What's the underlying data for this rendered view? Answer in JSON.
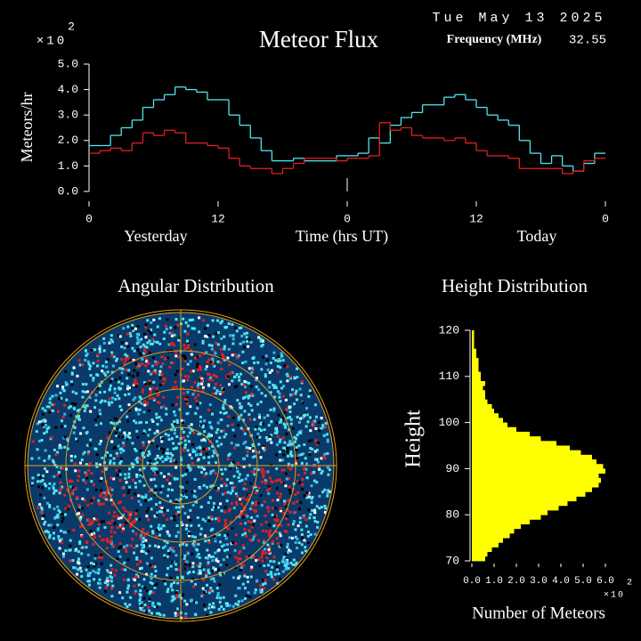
{
  "header": {
    "date": "Tue May 13 2025",
    "frequency_label": "Frequency (MHz)",
    "frequency": 32.55
  },
  "chart_data": [
    {
      "type": "line",
      "title": "Meteor Flux",
      "y_label": "Meteors/hr",
      "x_label": "Time (hrs UT)",
      "multiplier": {
        "base": "×10",
        "exponent": 2
      },
      "day_labels": [
        "Yesterday",
        "Today"
      ],
      "xlim": [
        0,
        48
      ],
      "xticks": [
        0,
        12,
        {
          "value": 24,
          "label": "0"
        },
        {
          "value": 36,
          "label": "12"
        },
        {
          "value": 48,
          "label": "0"
        }
      ],
      "ylim": [
        0,
        5
      ],
      "yticks": [
        {
          "value": 0,
          "label": "0.0"
        },
        {
          "value": 1,
          "label": "1.0"
        },
        {
          "value": 2,
          "label": "2.0"
        },
        {
          "value": 3,
          "label": "3.0"
        },
        {
          "value": 4,
          "label": "4.0"
        },
        {
          "value": 5,
          "label": "5.0"
        }
      ],
      "x": [
        0,
        1,
        2,
        3,
        4,
        5,
        6,
        7,
        8,
        9,
        10,
        11,
        12,
        13,
        14,
        15,
        16,
        17,
        18,
        19,
        20,
        21,
        22,
        23,
        24,
        25,
        26,
        27,
        28,
        29,
        30,
        31,
        32,
        33,
        34,
        35,
        36,
        37,
        38,
        39,
        40,
        41,
        42,
        43,
        44,
        45,
        46,
        47
      ],
      "series": [
        {
          "color": "#4fe6f0",
          "values": [
            1.8,
            1.8,
            2.2,
            2.5,
            2.8,
            3.3,
            3.6,
            3.8,
            4.1,
            4.0,
            3.9,
            3.6,
            3.6,
            3.0,
            2.6,
            2.1,
            1.6,
            1.2,
            1.2,
            1.3,
            1.2,
            1.2,
            1.2,
            1.4,
            1.4,
            1.5,
            2.1,
            1.9,
            2.6,
            2.9,
            3.1,
            3.4,
            3.4,
            3.7,
            3.8,
            3.6,
            3.3,
            3.0,
            2.8,
            2.6,
            2.0,
            1.5,
            1.1,
            1.4,
            1.0,
            0.8,
            1.1,
            1.5
          ]
        },
        {
          "color": "#e02020",
          "values": [
            1.5,
            1.6,
            1.7,
            1.6,
            1.9,
            2.3,
            2.2,
            2.4,
            2.3,
            1.9,
            1.9,
            1.8,
            1.7,
            1.3,
            1.0,
            0.9,
            0.9,
            0.7,
            0.9,
            1.1,
            1.3,
            1.3,
            1.3,
            1.2,
            1.3,
            1.3,
            1.4,
            2.7,
            2.4,
            2.5,
            2.2,
            2.1,
            2.1,
            2.0,
            2.1,
            1.9,
            1.6,
            1.4,
            1.4,
            1.3,
            0.9,
            0.9,
            0.9,
            0.9,
            0.7,
            0.8,
            1.2,
            1.3
          ]
        }
      ]
    },
    {
      "type": "polar",
      "title": "Angular Distribution"
    },
    {
      "type": "histogram",
      "title": "Height Distribution",
      "y_label": "Height",
      "x_label": "Number of Meteors",
      "multiplier": {
        "base": "×10",
        "exponent": 2
      },
      "color": "#ffff00",
      "bins": [
        70,
        71,
        72,
        73,
        74,
        75,
        76,
        77,
        78,
        79,
        80,
        81,
        82,
        83,
        84,
        85,
        86,
        87,
        88,
        89,
        90,
        91,
        92,
        93,
        94,
        95,
        96,
        97,
        98,
        99,
        100,
        101,
        102,
        103,
        104,
        105,
        106,
        107,
        108,
        109,
        110,
        111,
        112,
        113,
        114,
        115,
        116,
        117,
        118,
        119,
        120
      ],
      "values": [
        0.6,
        0.7,
        0.9,
        1.2,
        1.4,
        1.7,
        1.9,
        2.2,
        2.6,
        3.1,
        3.4,
        3.9,
        4.3,
        4.7,
        5.1,
        5.4,
        5.7,
        5.8,
        5.7,
        6.0,
        5.9,
        5.6,
        5.4,
        4.9,
        4.4,
        3.8,
        3.1,
        2.6,
        2.0,
        1.6,
        1.4,
        1.2,
        1.0,
        0.9,
        0.7,
        0.6,
        0.6,
        0.5,
        0.6,
        0.4,
        0.4,
        0.3,
        0.3,
        0.3,
        0.2,
        0.2,
        0.1,
        0.1,
        0.1,
        0.1
      ],
      "ylim": [
        70,
        121
      ],
      "yticks": [
        70,
        80,
        90,
        100,
        110,
        120
      ],
      "xlim": [
        0,
        6
      ],
      "xticks": [
        {
          "value": 0,
          "label": "0.0"
        },
        {
          "value": 1,
          "label": "1.0"
        },
        {
          "value": 2,
          "label": "2.0"
        },
        {
          "value": 3,
          "label": "3.0"
        },
        {
          "value": 4,
          "label": "4.0"
        },
        {
          "value": 5,
          "label": "5.0"
        },
        {
          "value": 6,
          "label": "6.0"
        }
      ]
    }
  ]
}
